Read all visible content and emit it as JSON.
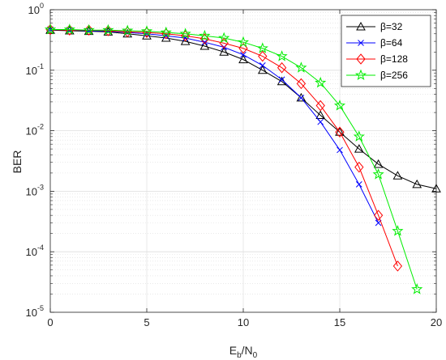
{
  "chart_data": {
    "type": "line",
    "xlabel": {
      "base": "E",
      "sub1": "b",
      "mid": "/N",
      "sub2": "0"
    },
    "ylabel": "BER",
    "xlim": [
      0,
      20
    ],
    "ylim": [
      1e-05,
      1
    ],
    "yscale": "log",
    "grid": true,
    "legend_position": "top-right",
    "x_ticks": [
      "0",
      "5",
      "10",
      "15",
      "20"
    ],
    "x_tick_values": [
      0,
      5,
      10,
      15,
      20
    ],
    "y_ticks": [
      {
        "base": "10",
        "exp": "0",
        "value": 1
      },
      {
        "base": "10",
        "exp": "-1",
        "value": 0.1
      },
      {
        "base": "10",
        "exp": "-2",
        "value": 0.01
      },
      {
        "base": "10",
        "exp": "-3",
        "value": 0.001
      },
      {
        "base": "10",
        "exp": "-4",
        "value": 0.0001
      },
      {
        "base": "10",
        "exp": "-5",
        "value": 1e-05
      }
    ],
    "series": [
      {
        "name": "β=32",
        "color": "#000000",
        "marker": "triangle",
        "x": [
          0,
          1,
          2,
          3,
          4,
          5,
          6,
          7,
          8,
          9,
          10,
          11,
          12,
          13,
          14,
          15,
          16,
          17,
          18,
          19,
          20
        ],
        "y": [
          0.46,
          0.45,
          0.44,
          0.43,
          0.4,
          0.37,
          0.34,
          0.3,
          0.25,
          0.2,
          0.15,
          0.1,
          0.065,
          0.035,
          0.018,
          0.0095,
          0.005,
          0.0028,
          0.0018,
          0.0013,
          0.0011
        ]
      },
      {
        "name": "β=64",
        "color": "#0000ff",
        "marker": "x",
        "x": [
          0,
          1,
          2,
          3,
          4,
          5,
          6,
          7,
          8,
          9,
          10,
          11,
          12,
          13,
          14,
          15,
          16,
          17
        ],
        "y": [
          0.47,
          0.46,
          0.45,
          0.44,
          0.42,
          0.4,
          0.37,
          0.34,
          0.29,
          0.24,
          0.18,
          0.12,
          0.07,
          0.035,
          0.014,
          0.0048,
          0.0013,
          0.0003
        ]
      },
      {
        "name": "β=128",
        "color": "#ff0000",
        "marker": "diamond",
        "x": [
          0,
          1,
          2,
          3,
          4,
          5,
          6,
          7,
          8,
          9,
          10,
          11,
          12,
          13,
          14,
          15,
          16,
          17,
          18
        ],
        "y": [
          0.47,
          0.46,
          0.46,
          0.45,
          0.43,
          0.42,
          0.4,
          0.37,
          0.33,
          0.28,
          0.23,
          0.17,
          0.11,
          0.06,
          0.026,
          0.0095,
          0.0025,
          0.0004,
          5.8e-05
        ]
      },
      {
        "name": "β=256",
        "color": "#00ee00",
        "marker": "star",
        "x": [
          0,
          1,
          2,
          3,
          4,
          5,
          6,
          7,
          8,
          9,
          10,
          11,
          12,
          13,
          14,
          15,
          16,
          17,
          18,
          19
        ],
        "y": [
          0.47,
          0.47,
          0.46,
          0.46,
          0.45,
          0.44,
          0.42,
          0.4,
          0.37,
          0.34,
          0.29,
          0.23,
          0.17,
          0.11,
          0.062,
          0.026,
          0.008,
          0.0019,
          0.00022,
          2.4e-05
        ]
      }
    ]
  }
}
